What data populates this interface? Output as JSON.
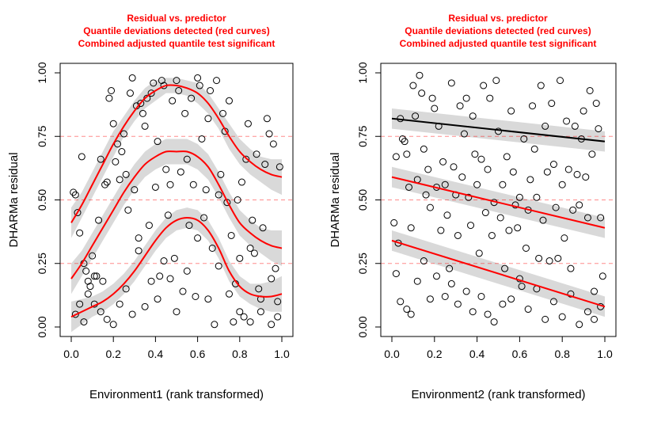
{
  "chart_data": [
    {
      "type": "scatter",
      "title_lines": [
        "Residual vs. predictor",
        "Quantile deviations detected (red curves)",
        "Combined adjusted quantile test significant"
      ],
      "xlabel": "Environment1 (rank transformed)",
      "ylabel": "DHARMa residual",
      "xlim": [
        0,
        1
      ],
      "ylim": [
        0,
        1
      ],
      "xticks": [
        "0.0",
        "0.2",
        "0.4",
        "0.6",
        "0.8",
        "1.0"
      ],
      "yticks": [
        "0.00",
        "0.25",
        "0.50",
        "0.75",
        "1.00"
      ],
      "reference_lines": [
        0.25,
        0.5,
        0.75
      ],
      "reference_color": "#ff0000",
      "fit_color": "#ff0000",
      "band_color": "#d9d9d9",
      "title_color": "#ff0000",
      "fits": [
        {
          "quantile": 0.25,
          "x": [
            0,
            0.05,
            0.1,
            0.15,
            0.2,
            0.25,
            0.3,
            0.35,
            0.4,
            0.45,
            0.5,
            0.55,
            0.6,
            0.65,
            0.7,
            0.75,
            0.8,
            0.85,
            0.9,
            0.95,
            1.0
          ],
          "y": [
            0.04,
            0.06,
            0.08,
            0.1,
            0.13,
            0.17,
            0.22,
            0.28,
            0.34,
            0.39,
            0.42,
            0.43,
            0.42,
            0.38,
            0.31,
            0.22,
            0.16,
            0.13,
            0.12,
            0.12,
            0.13
          ],
          "band": [
            0.06,
            0.05,
            0.04,
            0.04,
            0.04,
            0.04,
            0.04,
            0.04,
            0.04,
            0.04,
            0.04,
            0.04,
            0.04,
            0.04,
            0.04,
            0.04,
            0.04,
            0.04,
            0.05,
            0.06,
            0.07
          ]
        },
        {
          "quantile": 0.5,
          "x": [
            0,
            0.05,
            0.1,
            0.15,
            0.2,
            0.25,
            0.3,
            0.35,
            0.4,
            0.45,
            0.5,
            0.55,
            0.6,
            0.65,
            0.7,
            0.75,
            0.8,
            0.85,
            0.9,
            0.95,
            1.0
          ],
          "y": [
            0.19,
            0.25,
            0.32,
            0.39,
            0.46,
            0.53,
            0.59,
            0.64,
            0.67,
            0.69,
            0.69,
            0.69,
            0.67,
            0.63,
            0.56,
            0.48,
            0.41,
            0.37,
            0.34,
            0.32,
            0.31
          ],
          "band": [
            0.06,
            0.05,
            0.05,
            0.05,
            0.05,
            0.05,
            0.05,
            0.05,
            0.05,
            0.05,
            0.05,
            0.05,
            0.05,
            0.05,
            0.05,
            0.05,
            0.05,
            0.05,
            0.05,
            0.06,
            0.07
          ]
        },
        {
          "quantile": 0.75,
          "x": [
            0,
            0.05,
            0.1,
            0.15,
            0.2,
            0.25,
            0.3,
            0.35,
            0.4,
            0.45,
            0.5,
            0.55,
            0.6,
            0.65,
            0.7,
            0.75,
            0.8,
            0.85,
            0.9,
            0.95,
            1.0
          ],
          "y": [
            0.41,
            0.48,
            0.56,
            0.64,
            0.72,
            0.79,
            0.85,
            0.9,
            0.93,
            0.95,
            0.95,
            0.94,
            0.92,
            0.88,
            0.82,
            0.75,
            0.69,
            0.65,
            0.62,
            0.6,
            0.59
          ],
          "band": [
            0.06,
            0.05,
            0.05,
            0.05,
            0.05,
            0.04,
            0.04,
            0.04,
            0.04,
            0.03,
            0.03,
            0.03,
            0.04,
            0.04,
            0.04,
            0.05,
            0.05,
            0.05,
            0.05,
            0.06,
            0.07
          ]
        }
      ],
      "points": [
        [
          0.01,
          0.53
        ],
        [
          0.02,
          0.52
        ],
        [
          0.03,
          0.45
        ],
        [
          0.04,
          0.37
        ],
        [
          0.05,
          0.67
        ],
        [
          0.06,
          0.25
        ],
        [
          0.07,
          0.22
        ],
        [
          0.08,
          0.18
        ],
        [
          0.09,
          0.16
        ],
        [
          0.1,
          0.28
        ],
        [
          0.11,
          0.2
        ],
        [
          0.12,
          0.2
        ],
        [
          0.13,
          0.42
        ],
        [
          0.14,
          0.66
        ],
        [
          0.15,
          0.18
        ],
        [
          0.16,
          0.56
        ],
        [
          0.17,
          0.57
        ],
        [
          0.18,
          0.9
        ],
        [
          0.19,
          0.93
        ],
        [
          0.2,
          0.8
        ],
        [
          0.21,
          0.65
        ],
        [
          0.22,
          0.72
        ],
        [
          0.23,
          0.58
        ],
        [
          0.24,
          0.69
        ],
        [
          0.25,
          0.76
        ],
        [
          0.26,
          0.6
        ],
        [
          0.27,
          0.46
        ],
        [
          0.28,
          0.92
        ],
        [
          0.29,
          0.98
        ],
        [
          0.3,
          0.54
        ],
        [
          0.31,
          0.87
        ],
        [
          0.32,
          0.3
        ],
        [
          0.33,
          0.88
        ],
        [
          0.34,
          0.84
        ],
        [
          0.35,
          0.79
        ],
        [
          0.36,
          0.9
        ],
        [
          0.37,
          0.4
        ],
        [
          0.38,
          0.92
        ],
        [
          0.39,
          0.96
        ],
        [
          0.4,
          0.55
        ],
        [
          0.41,
          0.73
        ],
        [
          0.42,
          0.2
        ],
        [
          0.43,
          0.97
        ],
        [
          0.44,
          0.95
        ],
        [
          0.45,
          0.62
        ],
        [
          0.46,
          0.44
        ],
        [
          0.47,
          0.56
        ],
        [
          0.48,
          0.89
        ],
        [
          0.49,
          0.27
        ],
        [
          0.5,
          0.97
        ],
        [
          0.51,
          0.93
        ],
        [
          0.52,
          0.61
        ],
        [
          0.53,
          0.14
        ],
        [
          0.54,
          0.84
        ],
        [
          0.55,
          0.66
        ],
        [
          0.56,
          0.4
        ],
        [
          0.57,
          0.9
        ],
        [
          0.58,
          0.56
        ],
        [
          0.59,
          0.12
        ],
        [
          0.6,
          0.98
        ],
        [
          0.61,
          0.95
        ],
        [
          0.62,
          0.74
        ],
        [
          0.63,
          0.43
        ],
        [
          0.64,
          0.54
        ],
        [
          0.65,
          0.82
        ],
        [
          0.66,
          0.93
        ],
        [
          0.67,
          0.31
        ],
        [
          0.68,
          0.01
        ],
        [
          0.69,
          0.97
        ],
        [
          0.7,
          0.52
        ],
        [
          0.71,
          0.6
        ],
        [
          0.72,
          0.84
        ],
        [
          0.73,
          0.77
        ],
        [
          0.74,
          0.49
        ],
        [
          0.75,
          0.89
        ],
        [
          0.76,
          0.36
        ],
        [
          0.77,
          0.02
        ],
        [
          0.78,
          0.17
        ],
        [
          0.79,
          0.5
        ],
        [
          0.8,
          0.27
        ],
        [
          0.81,
          0.57
        ],
        [
          0.82,
          0.04
        ],
        [
          0.83,
          0.66
        ],
        [
          0.84,
          0.8
        ],
        [
          0.85,
          0.31
        ],
        [
          0.86,
          0.42
        ],
        [
          0.87,
          0.29
        ],
        [
          0.88,
          0.68
        ],
        [
          0.89,
          0.15
        ],
        [
          0.9,
          0.06
        ],
        [
          0.91,
          0.39
        ],
        [
          0.92,
          0.64
        ],
        [
          0.93,
          0.82
        ],
        [
          0.94,
          0.76
        ],
        [
          0.95,
          0.19
        ],
        [
          0.96,
          0.72
        ],
        [
          0.97,
          0.23
        ],
        [
          0.98,
          0.1
        ],
        [
          0.99,
          0.63
        ],
        [
          0.02,
          0.05
        ],
        [
          0.04,
          0.09
        ],
        [
          0.06,
          0.02
        ],
        [
          0.08,
          0.13
        ],
        [
          0.11,
          0.09
        ],
        [
          0.14,
          0.06
        ],
        [
          0.17,
          0.03
        ],
        [
          0.2,
          0.01
        ],
        [
          0.23,
          0.09
        ],
        [
          0.26,
          0.15
        ],
        [
          0.29,
          0.05
        ],
        [
          0.32,
          0.35
        ],
        [
          0.35,
          0.08
        ],
        [
          0.38,
          0.18
        ],
        [
          0.41,
          0.11
        ],
        [
          0.44,
          0.26
        ],
        [
          0.47,
          0.19
        ],
        [
          0.5,
          0.06
        ],
        [
          0.55,
          0.22
        ],
        [
          0.6,
          0.35
        ],
        [
          0.65,
          0.11
        ],
        [
          0.7,
          0.24
        ],
        [
          0.75,
          0.13
        ],
        [
          0.8,
          0.06
        ],
        [
          0.85,
          0.02
        ],
        [
          0.9,
          0.11
        ],
        [
          0.95,
          0.01
        ],
        [
          0.98,
          0.04
        ]
      ]
    },
    {
      "type": "scatter",
      "title_lines": [
        "Residual vs. predictor",
        "Quantile deviations detected (red curves)",
        "Combined adjusted quantile test significant"
      ],
      "xlabel": "Environment2 (rank transformed)",
      "ylabel": "DHARMa residual",
      "xlim": [
        0,
        1
      ],
      "ylim": [
        0,
        1
      ],
      "xticks": [
        "0.0",
        "0.2",
        "0.4",
        "0.6",
        "0.8",
        "1.0"
      ],
      "yticks": [
        "0.00",
        "0.25",
        "0.50",
        "0.75",
        "1.00"
      ],
      "reference_lines": [
        0.25,
        0.5,
        0.75
      ],
      "reference_color": "#ff0000",
      "band_color": "#d9d9d9",
      "title_color": "#ff0000",
      "fits": [
        {
          "quantile": 0.25,
          "color": "#ff0000",
          "x": [
            0,
            1
          ],
          "y": [
            0.34,
            0.08
          ],
          "band": [
            0.04,
            0.04
          ]
        },
        {
          "quantile": 0.5,
          "color": "#ff0000",
          "x": [
            0,
            1
          ],
          "y": [
            0.59,
            0.39
          ],
          "band": [
            0.04,
            0.04
          ]
        },
        {
          "quantile": 0.75,
          "color": "#000000",
          "x": [
            0,
            1
          ],
          "y": [
            0.82,
            0.73
          ],
          "band": [
            0.04,
            0.04
          ]
        }
      ],
      "points": [
        [
          0.01,
          0.41
        ],
        [
          0.02,
          0.67
        ],
        [
          0.03,
          0.33
        ],
        [
          0.04,
          0.82
        ],
        [
          0.05,
          0.74
        ],
        [
          0.06,
          0.73
        ],
        [
          0.07,
          0.68
        ],
        [
          0.08,
          0.55
        ],
        [
          0.09,
          0.39
        ],
        [
          0.1,
          0.95
        ],
        [
          0.11,
          0.83
        ],
        [
          0.12,
          0.58
        ],
        [
          0.13,
          0.99
        ],
        [
          0.14,
          0.92
        ],
        [
          0.15,
          0.7
        ],
        [
          0.16,
          0.52
        ],
        [
          0.17,
          0.62
        ],
        [
          0.18,
          0.47
        ],
        [
          0.19,
          0.9
        ],
        [
          0.2,
          0.86
        ],
        [
          0.21,
          0.55
        ],
        [
          0.22,
          0.79
        ],
        [
          0.23,
          0.38
        ],
        [
          0.24,
          0.65
        ],
        [
          0.25,
          0.56
        ],
        [
          0.26,
          0.44
        ],
        [
          0.27,
          0.23
        ],
        [
          0.28,
          0.96
        ],
        [
          0.29,
          0.63
        ],
        [
          0.3,
          0.52
        ],
        [
          0.31,
          0.36
        ],
        [
          0.32,
          0.87
        ],
        [
          0.33,
          0.59
        ],
        [
          0.34,
          0.76
        ],
        [
          0.35,
          0.9
        ],
        [
          0.36,
          0.51
        ],
        [
          0.37,
          0.4
        ],
        [
          0.38,
          0.83
        ],
        [
          0.39,
          0.68
        ],
        [
          0.4,
          0.56
        ],
        [
          0.41,
          0.29
        ],
        [
          0.42,
          0.66
        ],
        [
          0.43,
          0.95
        ],
        [
          0.44,
          0.45
        ],
        [
          0.45,
          0.62
        ],
        [
          0.46,
          0.9
        ],
        [
          0.47,
          0.36
        ],
        [
          0.48,
          0.49
        ],
        [
          0.49,
          0.97
        ],
        [
          0.5,
          0.77
        ],
        [
          0.51,
          0.43
        ],
        [
          0.52,
          0.56
        ],
        [
          0.53,
          0.23
        ],
        [
          0.54,
          0.67
        ],
        [
          0.55,
          0.38
        ],
        [
          0.56,
          0.85
        ],
        [
          0.57,
          0.61
        ],
        [
          0.58,
          0.48
        ],
        [
          0.59,
          0.39
        ],
        [
          0.6,
          0.51
        ],
        [
          0.61,
          0.16
        ],
        [
          0.62,
          0.74
        ],
        [
          0.63,
          0.31
        ],
        [
          0.64,
          0.46
        ],
        [
          0.65,
          0.58
        ],
        [
          0.66,
          0.87
        ],
        [
          0.67,
          0.7
        ],
        [
          0.68,
          0.51
        ],
        [
          0.69,
          0.27
        ],
        [
          0.7,
          0.95
        ],
        [
          0.71,
          0.42
        ],
        [
          0.72,
          0.79
        ],
        [
          0.73,
          0.61
        ],
        [
          0.74,
          0.26
        ],
        [
          0.75,
          0.88
        ],
        [
          0.76,
          0.64
        ],
        [
          0.77,
          0.47
        ],
        [
          0.78,
          0.27
        ],
        [
          0.79,
          0.97
        ],
        [
          0.8,
          0.56
        ],
        [
          0.81,
          0.35
        ],
        [
          0.82,
          0.81
        ],
        [
          0.83,
          0.62
        ],
        [
          0.84,
          0.23
        ],
        [
          0.85,
          0.46
        ],
        [
          0.86,
          0.79
        ],
        [
          0.87,
          0.6
        ],
        [
          0.88,
          0.48
        ],
        [
          0.89,
          0.74
        ],
        [
          0.9,
          0.85
        ],
        [
          0.91,
          0.59
        ],
        [
          0.92,
          0.43
        ],
        [
          0.93,
          0.93
        ],
        [
          0.94,
          0.68
        ],
        [
          0.95,
          0.14
        ],
        [
          0.96,
          0.88
        ],
        [
          0.97,
          0.78
        ],
        [
          0.98,
          0.43
        ],
        [
          0.99,
          0.2
        ],
        [
          0.02,
          0.21
        ],
        [
          0.04,
          0.1
        ],
        [
          0.07,
          0.07
        ],
        [
          0.09,
          0.05
        ],
        [
          0.12,
          0.18
        ],
        [
          0.15,
          0.26
        ],
        [
          0.18,
          0.11
        ],
        [
          0.21,
          0.2
        ],
        [
          0.25,
          0.12
        ],
        [
          0.28,
          0.17
        ],
        [
          0.31,
          0.09
        ],
        [
          0.35,
          0.14
        ],
        [
          0.38,
          0.06
        ],
        [
          0.42,
          0.12
        ],
        [
          0.45,
          0.05
        ],
        [
          0.48,
          0.02
        ],
        [
          0.52,
          0.09
        ],
        [
          0.56,
          0.11
        ],
        [
          0.6,
          0.19
        ],
        [
          0.64,
          0.07
        ],
        [
          0.68,
          0.15
        ],
        [
          0.72,
          0.03
        ],
        [
          0.76,
          0.1
        ],
        [
          0.8,
          0.04
        ],
        [
          0.84,
          0.13
        ],
        [
          0.88,
          0.01
        ],
        [
          0.92,
          0.06
        ],
        [
          0.95,
          0.03
        ],
        [
          0.98,
          0.08
        ]
      ]
    }
  ]
}
